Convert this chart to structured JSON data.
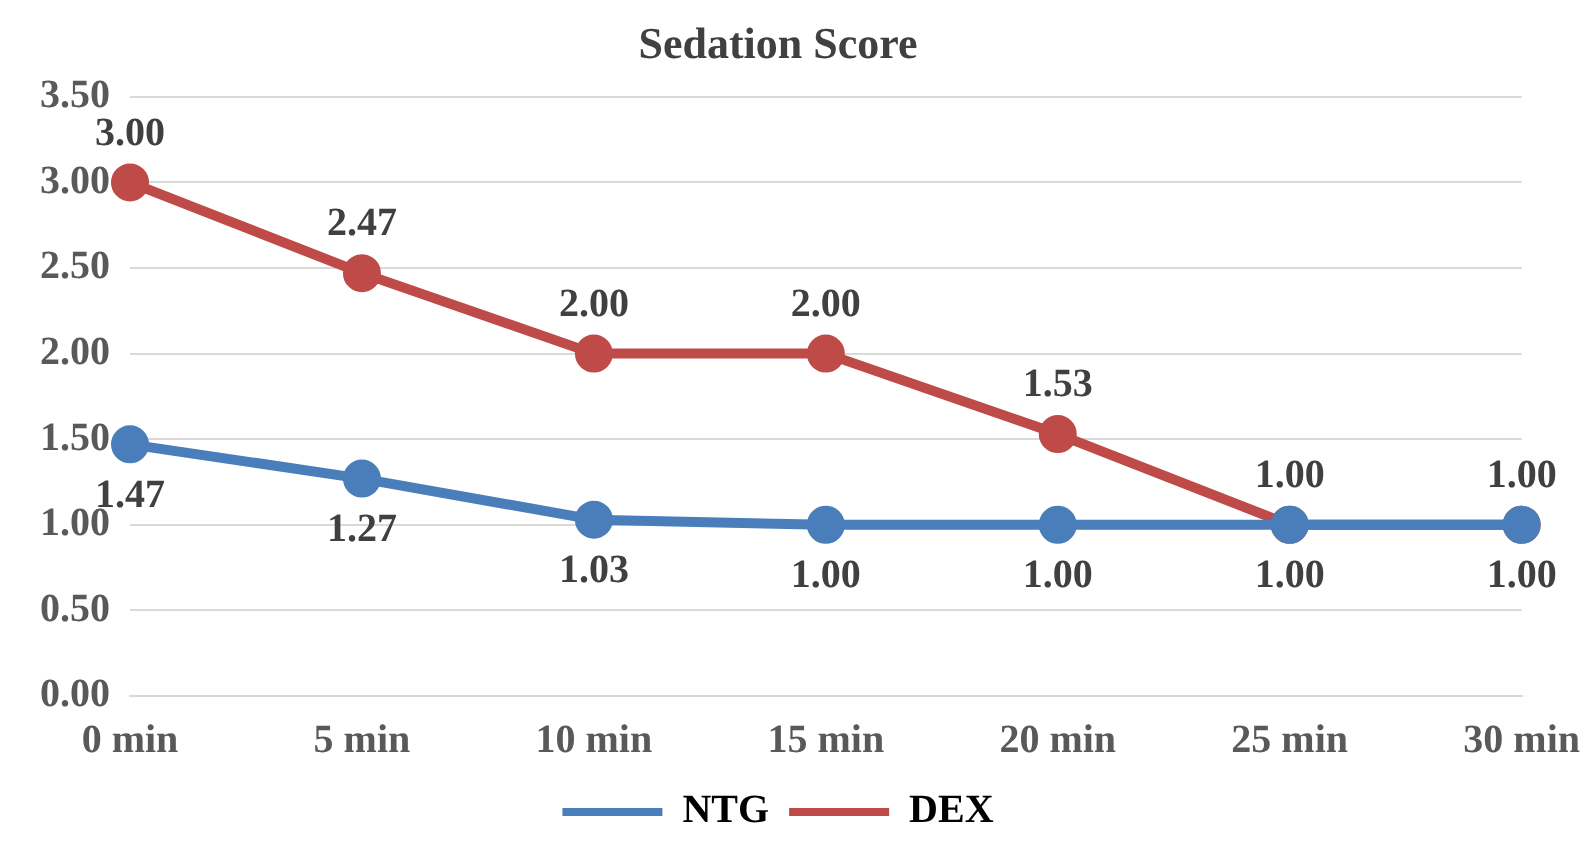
{
  "chart_data": {
    "type": "line",
    "title": "Sedation Score",
    "categories": [
      "0 min",
      "5 min",
      "10 min",
      "15 min",
      "20 min",
      "25 min",
      "30 min"
    ],
    "series": [
      {
        "name": "NTG",
        "color": "#4a7ebb",
        "values": [
          1.47,
          1.27,
          1.03,
          1.0,
          1.0,
          1.0,
          1.0
        ],
        "value_labels": [
          "1.47",
          "1.27",
          "1.03",
          "1.00",
          "1.00",
          "1.00",
          "1.00"
        ]
      },
      {
        "name": "DEX",
        "color": "#be4b48",
        "values": [
          3.0,
          2.47,
          2.0,
          2.0,
          1.53,
          1.0,
          1.0
        ],
        "value_labels": [
          "3.00",
          "2.47",
          "2.00",
          "2.00",
          "1.53",
          "1.00",
          "1.00"
        ]
      }
    ],
    "ylim": [
      0,
      3.5
    ],
    "yticks": [
      {
        "value": 0,
        "label": "0.00"
      },
      {
        "value": 0.5,
        "label": "0.50"
      },
      {
        "value": 1,
        "label": "1.00"
      },
      {
        "value": 1.5,
        "label": "1.50"
      },
      {
        "value": 2,
        "label": "2.00"
      },
      {
        "value": 2.5,
        "label": "2.50"
      },
      {
        "value": 3,
        "label": "3.00"
      },
      {
        "value": 3.5,
        "label": "3.50"
      }
    ],
    "grid": "y",
    "legend": "bottom",
    "marker": "circle",
    "line_style": "solid"
  }
}
